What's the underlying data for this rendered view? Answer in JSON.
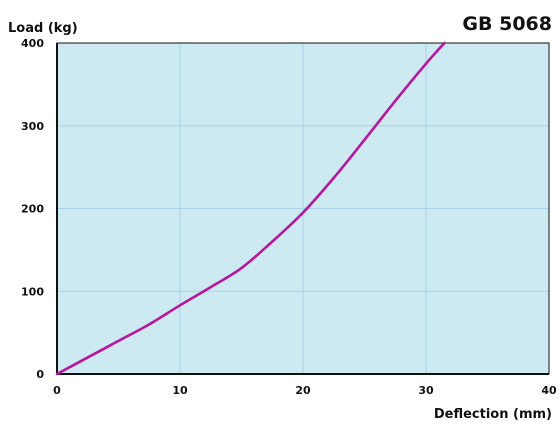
{
  "colors": {
    "plot_background": "#cde9f2",
    "grid": "#a9d3ea",
    "axis": "#111111",
    "series_line": "#b5179e"
  },
  "chart_data": {
    "type": "line",
    "title": "GB 5068",
    "xlabel": "Deflection (mm)",
    "ylabel": "Load (kg)",
    "xlim": [
      0,
      40
    ],
    "ylim": [
      0,
      400
    ],
    "x_ticks": [
      0,
      10,
      20,
      30,
      40
    ],
    "y_ticks": [
      0,
      100,
      200,
      300,
      400
    ],
    "x_tick_labels": [
      "0",
      "10",
      "20",
      "30",
      "40"
    ],
    "y_tick_labels": [
      "0",
      "100",
      "200",
      "300",
      "400"
    ],
    "grid": true,
    "legend": "none",
    "series": [
      {
        "x": [
          0,
          2.5,
          5,
          7.5,
          10,
          12.5,
          15,
          17.5,
          20,
          22.5,
          25,
          27.5,
          30,
          31.5
        ],
        "y": [
          0,
          20,
          40,
          60,
          83,
          105,
          128,
          160,
          195,
          237,
          283,
          330,
          375,
          400
        ]
      }
    ]
  }
}
